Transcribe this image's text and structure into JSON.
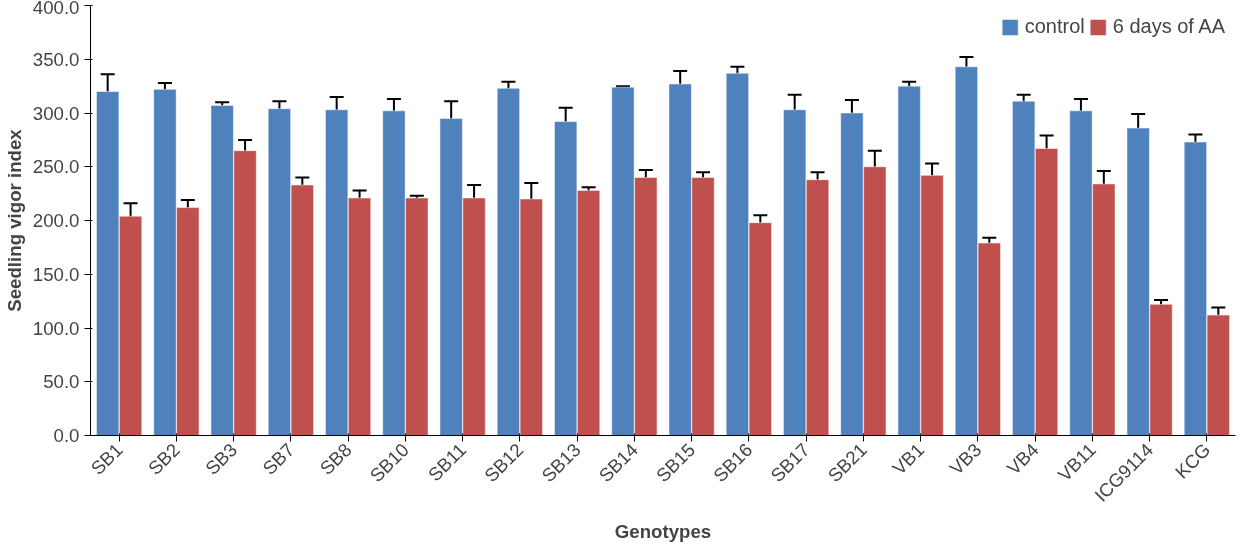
{
  "chart_data": {
    "type": "bar",
    "xlabel": "Genotypes",
    "ylabel": "Seedling vigor index",
    "categories": [
      "SB1",
      "SB2",
      "SB3",
      "SB7",
      "SB8",
      "SB10",
      "SB11",
      "SB12",
      "SB13",
      "SB14",
      "SB15",
      "SB16",
      "SB17",
      "SB21",
      "VB1",
      "VB3",
      "VB4",
      "VB11",
      "ICG9114",
      "KCG"
    ],
    "series": [
      {
        "name": "control",
        "color": "#4f81bd",
        "values": [
          320,
          322,
          307,
          304,
          303,
          302,
          295,
          323,
          292,
          324,
          327,
          337,
          303,
          300,
          325,
          343,
          311,
          302,
          286,
          273
        ],
        "errors": [
          16,
          6,
          3,
          7,
          12,
          11,
          16,
          6,
          13,
          1,
          12,
          6,
          14,
          12,
          4,
          9,
          6,
          11,
          13,
          7
        ]
      },
      {
        "name": "6 days of AA",
        "color": "#c0504d",
        "values": [
          204,
          212,
          265,
          233,
          221,
          221,
          221,
          220,
          228,
          240,
          240,
          198,
          238,
          250,
          242,
          179,
          267,
          234,
          122,
          112
        ],
        "errors": [
          12,
          7,
          10,
          7,
          7,
          2,
          12,
          15,
          3,
          7,
          5,
          7,
          7,
          15,
          11,
          5,
          12,
          12,
          4,
          7
        ]
      }
    ],
    "ylim": [
      0,
      400
    ],
    "yticks": [
      {
        "value": 0,
        "label": "0.0"
      },
      {
        "value": 50,
        "label": "50.0"
      },
      {
        "value": 100,
        "label": "100.0"
      },
      {
        "value": 150,
        "label": "150.0"
      },
      {
        "value": 200,
        "label": "200.0"
      },
      {
        "value": 250,
        "label": "250.0"
      },
      {
        "value": 300,
        "label": "300.0"
      },
      {
        "value": 350,
        "label": "350.0"
      },
      {
        "value": 400,
        "label": "400.0"
      }
    ],
    "grid": false,
    "legend": "top right"
  }
}
